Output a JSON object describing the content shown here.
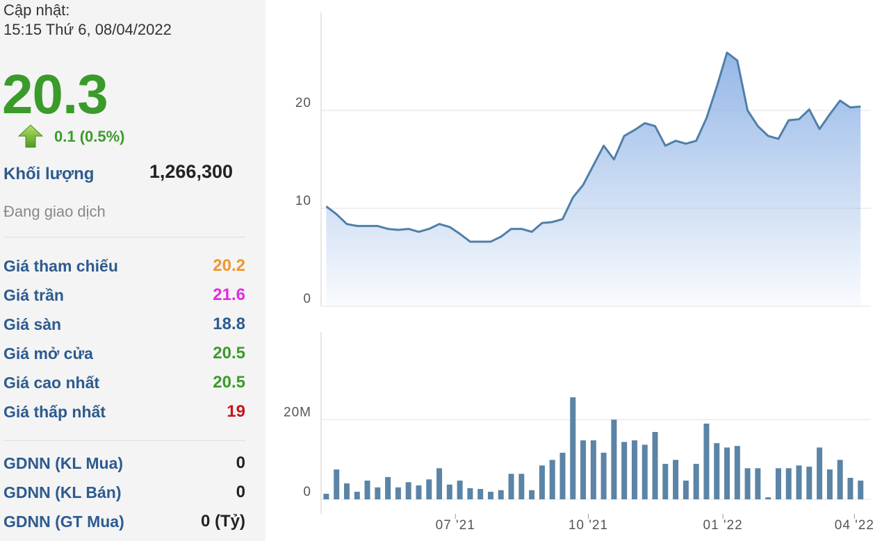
{
  "info": {
    "update_label": "Cập nhật:",
    "update_time": "15:15 Thứ 6, 08/04/2022",
    "price": "20.3",
    "change": "0.1 (0.5%)",
    "volume_label": "Khối lượng",
    "volume": "1,266,300",
    "status": "Đang giao dịch",
    "prices": [
      {
        "label": "Giá tham chiếu",
        "value": "20.2",
        "color": "#f0962d"
      },
      {
        "label": "Giá trần",
        "value": "21.6",
        "color": "#e22be2"
      },
      {
        "label": "Giá sàn",
        "value": "18.8",
        "color": "#2d5b8f"
      },
      {
        "label": "Giá mở cửa",
        "value": "20.5",
        "color": "#3a9b2a"
      },
      {
        "label": "Giá cao nhất",
        "value": "20.5",
        "color": "#3a9b2a"
      },
      {
        "label": "Giá thấp nhất",
        "value": "19",
        "color": "#c4161c"
      }
    ],
    "foreign": [
      {
        "label": "GDNN (KL Mua)",
        "value": "0",
        "color": "#222222"
      },
      {
        "label": "GDNN (KL Bán)",
        "value": "0",
        "color": "#222222"
      },
      {
        "label": "GDNN (GT Mua)",
        "value": "0 (Tỷ)",
        "color": "#222222"
      }
    ]
  },
  "chart_data": [
    {
      "type": "area",
      "x": [
        0,
        1,
        2,
        3,
        4,
        5,
        6,
        7,
        8,
        9,
        10,
        11,
        12,
        13,
        14,
        15,
        16,
        17,
        18,
        19,
        20,
        21,
        22,
        23,
        24,
        25,
        26,
        27,
        28,
        29,
        30,
        31,
        32,
        33,
        34,
        35,
        36,
        37,
        38,
        39,
        40,
        41,
        42,
        43,
        44,
        45,
        46,
        47,
        48,
        49,
        50,
        51,
        52
      ],
      "series": [
        {
          "color": "#4f7fa8",
          "values": [
            10.2,
            9.4,
            8.4,
            8.2,
            8.2,
            8.2,
            7.9,
            7.8,
            7.9,
            7.6,
            7.9,
            8.4,
            8.1,
            7.4,
            6.6,
            6.6,
            6.6,
            7.1,
            7.9,
            7.9,
            7.6,
            8.5,
            8.6,
            8.9,
            11.1,
            12.4,
            14.4,
            16.4,
            15.0,
            17.4,
            18.0,
            18.7,
            18.4,
            16.4,
            16.9,
            16.6,
            16.9,
            19.2,
            22.4,
            25.9,
            25.1,
            20.0,
            18.4,
            17.4,
            17.1,
            19.0,
            19.1,
            20.1,
            18.1,
            19.6,
            21.0,
            20.3,
            20.4
          ]
        }
      ],
      "xlim": [
        -0.5,
        53
      ],
      "ylim": [
        0,
        30
      ],
      "yticks": [
        0,
        10,
        20
      ],
      "grid": true
    },
    {
      "type": "bar",
      "x": [
        0,
        1,
        2,
        3,
        4,
        5,
        6,
        7,
        8,
        9,
        10,
        11,
        12,
        13,
        14,
        15,
        16,
        17,
        18,
        19,
        20,
        21,
        22,
        23,
        24,
        25,
        26,
        27,
        28,
        29,
        30,
        31,
        32,
        33,
        34,
        35,
        36,
        37,
        38,
        39,
        40,
        41,
        42,
        43,
        44,
        45,
        46,
        47,
        48,
        49,
        50,
        51,
        52
      ],
      "series": [
        {
          "color": "#5b84a6",
          "values": [
            1400000,
            7500000,
            4000000,
            1900000,
            4700000,
            3000000,
            5600000,
            3000000,
            4300000,
            3500000,
            5000000,
            7800000,
            3700000,
            4700000,
            2800000,
            2600000,
            1900000,
            2300000,
            6400000,
            6400000,
            2300000,
            8500000,
            9900000,
            11700000,
            25600000,
            14800000,
            14800000,
            11700000,
            20000000,
            14400000,
            14800000,
            13700000,
            16900000,
            8900000,
            9900000,
            4700000,
            8900000,
            19000000,
            14100000,
            13000000,
            13400000,
            7800000,
            7800000,
            500000,
            7800000,
            7800000,
            8500000,
            8200000,
            13000000,
            7500000,
            9900000,
            5400000,
            4700000
          ]
        }
      ],
      "xlim": [
        -0.5,
        53
      ],
      "xticks": [
        {
          "value": 12.57,
          "label": "07 '21"
        },
        {
          "value": 25.5,
          "label": "10 '21"
        },
        {
          "value": 38.6,
          "label": "01 '22"
        },
        {
          "value": 51.4,
          "label": "04 '22"
        }
      ],
      "ylim": [
        0,
        42000000
      ],
      "yticks": [
        0,
        {
          "value": 20000000,
          "label": "20M"
        }
      ],
      "grid": true
    }
  ]
}
